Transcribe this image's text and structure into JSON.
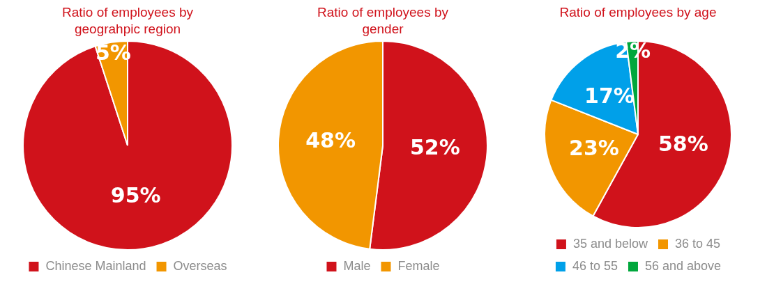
{
  "chart_data": [
    {
      "type": "pie",
      "title": "Ratio of employees by geograhpic region",
      "categories": [
        "Chinese Mainland",
        "Overseas"
      ],
      "values": [
        95,
        5
      ],
      "colors": [
        "#d0121b",
        "#f29600"
      ],
      "value_labels": [
        "95%",
        "5%"
      ],
      "legend": "bottom"
    },
    {
      "type": "pie",
      "title": "Ratio of employees by gender",
      "categories": [
        "Male",
        "Female"
      ],
      "values": [
        52,
        48
      ],
      "colors": [
        "#d0121b",
        "#f29600"
      ],
      "value_labels": [
        "52%",
        "48%"
      ],
      "legend": "bottom"
    },
    {
      "type": "pie",
      "title": "Ratio of employees by age",
      "categories": [
        "35 and below",
        "36 to 45",
        "46 to 55",
        "56 and above"
      ],
      "values": [
        58,
        23,
        17,
        2
      ],
      "colors": [
        "#d0121b",
        "#f29600",
        "#00a0e9",
        "#00a73c"
      ],
      "value_labels": [
        "58%",
        "23%",
        "17%",
        "2%"
      ],
      "legend": "bottom"
    }
  ]
}
